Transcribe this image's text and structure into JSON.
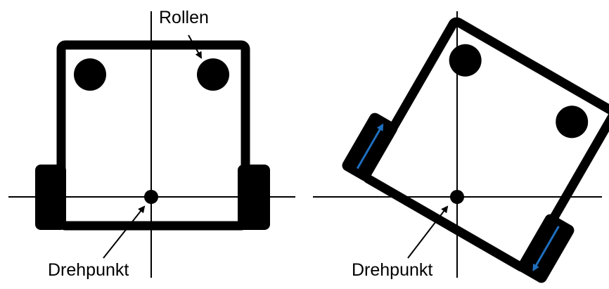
{
  "left_diagram": {
    "label_wheels": "Rollen",
    "label_pivot": "Drehpunkt"
  },
  "right_diagram": {
    "label_pivot": "Drehpunkt",
    "rotation_degrees": 30
  },
  "colors": {
    "ink": "#000000",
    "background": "#ffffff",
    "motion_arrow": "#1f6fbf"
  }
}
